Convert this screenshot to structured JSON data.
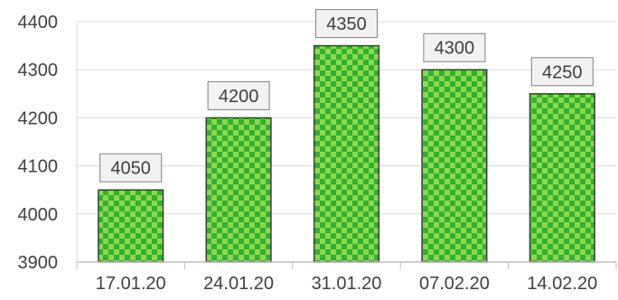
{
  "chart_data": {
    "type": "bar",
    "categories": [
      "17.01.20",
      "24.01.20",
      "31.01.20",
      "07.02.20",
      "14.02.20"
    ],
    "values": [
      4050,
      4200,
      4350,
      4300,
      4250
    ],
    "data_labels": [
      "4050",
      "4200",
      "4350",
      "4300",
      "4250"
    ],
    "title": "",
    "xlabel": "",
    "ylabel": "",
    "ylim": [
      3900,
      4400
    ],
    "yticks": [
      3900,
      4000,
      4100,
      4200,
      4300,
      4400
    ],
    "ytick_labels": [
      "3900",
      "4000",
      "4100",
      "4200",
      "4300",
      "4400"
    ],
    "grid": "horizontal",
    "legend": "none",
    "bar_pattern": "checkerboard",
    "colors": {
      "bar_dark": "#2fb135",
      "bar_light": "#8fd84a",
      "bar_outline": "#3d3d3d",
      "label_fill": "#f2f2f2",
      "label_border": "#7f7f7f",
      "grid": "#d9d9d9",
      "axis": "#bfbfbf",
      "text": "#404040"
    }
  }
}
